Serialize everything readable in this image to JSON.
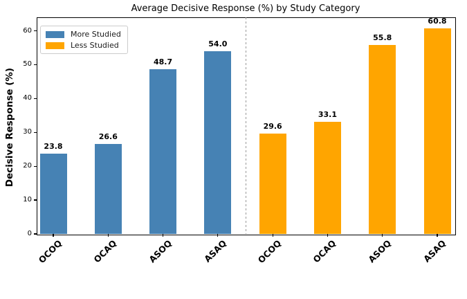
{
  "chart_data": {
    "type": "bar",
    "title": "Average Decisive Response (%) by Study Category",
    "ylabel": "Decisive Response (%)",
    "xlabel": "",
    "categories": [
      "OCOQ",
      "OCAQ",
      "ASOQ",
      "ASAQ",
      "OCOQ",
      "OCAQ",
      "ASOQ",
      "ASAQ"
    ],
    "series": [
      {
        "name": "More Studied",
        "color": "#4682B4",
        "indices": [
          0,
          1,
          2,
          3
        ],
        "values": [
          23.8,
          26.6,
          48.7,
          54.0
        ]
      },
      {
        "name": "Less Studied",
        "color": "#FFA500",
        "indices": [
          4,
          5,
          6,
          7
        ],
        "values": [
          29.6,
          33.1,
          55.8,
          60.8
        ]
      }
    ],
    "bar_value_labels": [
      "23.8",
      "26.6",
      "48.7",
      "54.0",
      "29.6",
      "33.1",
      "55.8",
      "60.8"
    ],
    "yticks": [
      0,
      10,
      20,
      30,
      40,
      50,
      60
    ],
    "ylim": [
      0,
      64
    ],
    "grid": false,
    "legend_position": "upper left",
    "separator": {
      "style": "dashed",
      "color": "#999999",
      "after_category_index": 3
    },
    "spine_color": "#000000",
    "background_color": "#ffffff"
  }
}
